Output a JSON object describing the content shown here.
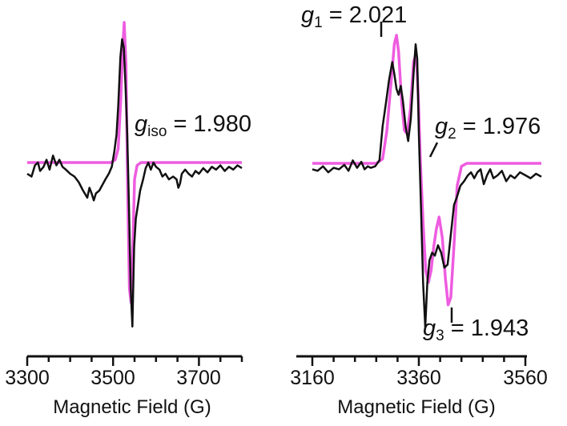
{
  "colors": {
    "experiment": "#111111",
    "simulation": "#ee5ce0"
  },
  "chart_data": [
    {
      "type": "line",
      "xlabel": "Magnetic Field (G)",
      "xlim": [
        3300,
        3800
      ],
      "xticks_major": [
        3300,
        3500,
        3700
      ],
      "xticks_minor": [
        3350,
        3400,
        3450,
        3550,
        3600,
        3650,
        3750,
        3800
      ],
      "tick_labels": [
        "3300",
        "3500",
        "3700"
      ],
      "annotation": {
        "g": "g",
        "sub": "iso",
        "value": "= 1.980"
      },
      "simulation": {
        "baseline": 0,
        "center": 3532,
        "points": [
          [
            3300,
            0
          ],
          [
            3495,
            0
          ],
          [
            3505,
            0.02
          ],
          [
            3512,
            0.1
          ],
          [
            3518,
            0.45
          ],
          [
            3522,
            0.8
          ],
          [
            3526,
            1.0
          ],
          [
            3530,
            0.7
          ],
          [
            3534,
            -0.2
          ],
          [
            3538,
            -0.9
          ],
          [
            3542,
            -1.0
          ],
          [
            3546,
            -0.6
          ],
          [
            3550,
            -0.12
          ],
          [
            3556,
            -0.02
          ],
          [
            3565,
            0
          ],
          [
            3800,
            0
          ]
        ]
      },
      "experiment": {
        "points": [
          [
            3300,
            -0.08
          ],
          [
            3310,
            -0.1
          ],
          [
            3318,
            -0.02
          ],
          [
            3325,
            0.0
          ],
          [
            3330,
            -0.06
          ],
          [
            3338,
            -0.03
          ],
          [
            3345,
            0.02
          ],
          [
            3352,
            -0.05
          ],
          [
            3360,
            0.05
          ],
          [
            3368,
            -0.02
          ],
          [
            3375,
            0.02
          ],
          [
            3382,
            -0.03
          ],
          [
            3390,
            -0.05
          ],
          [
            3400,
            -0.08
          ],
          [
            3410,
            -0.1
          ],
          [
            3420,
            -0.14
          ],
          [
            3430,
            -0.2
          ],
          [
            3440,
            -0.25
          ],
          [
            3445,
            -0.18
          ],
          [
            3450,
            -0.22
          ],
          [
            3455,
            -0.27
          ],
          [
            3460,
            -0.22
          ],
          [
            3468,
            -0.2
          ],
          [
            3475,
            -0.16
          ],
          [
            3482,
            -0.12
          ],
          [
            3490,
            -0.08
          ],
          [
            3497,
            -0.03
          ],
          [
            3503,
            0.08
          ],
          [
            3508,
            0.2
          ],
          [
            3512,
            0.4
          ],
          [
            3517,
            0.75
          ],
          [
            3521,
            0.88
          ],
          [
            3525,
            0.82
          ],
          [
            3529,
            0.55
          ],
          [
            3533,
            0.2
          ],
          [
            3537,
            -0.3
          ],
          [
            3541,
            -0.9
          ],
          [
            3545,
            -1.17
          ],
          [
            3549,
            -0.6
          ],
          [
            3553,
            -0.4
          ],
          [
            3558,
            -0.3
          ],
          [
            3563,
            -0.2
          ],
          [
            3570,
            -0.12
          ],
          [
            3576,
            -0.04
          ],
          [
            3582,
            0.0
          ],
          [
            3588,
            -0.05
          ],
          [
            3594,
            0.0
          ],
          [
            3600,
            -0.03
          ],
          [
            3608,
            -0.05
          ],
          [
            3615,
            -0.1
          ],
          [
            3622,
            -0.08
          ],
          [
            3630,
            -0.12
          ],
          [
            3640,
            -0.1
          ],
          [
            3648,
            -0.12
          ],
          [
            3652,
            -0.18
          ],
          [
            3656,
            -0.15
          ],
          [
            3660,
            -0.08
          ],
          [
            3668,
            -0.05
          ],
          [
            3676,
            -0.08
          ],
          [
            3684,
            -0.1
          ],
          [
            3692,
            -0.06
          ],
          [
            3700,
            -0.08
          ],
          [
            3710,
            -0.04
          ],
          [
            3720,
            -0.07
          ],
          [
            3730,
            -0.03
          ],
          [
            3740,
            -0.05
          ],
          [
            3750,
            -0.02
          ],
          [
            3760,
            -0.06
          ],
          [
            3770,
            -0.03
          ],
          [
            3780,
            -0.05
          ],
          [
            3790,
            -0.02
          ],
          [
            3800,
            -0.04
          ]
        ]
      }
    },
    {
      "type": "line",
      "xlabel": "Magnetic Field (G)",
      "xlim": [
        3160,
        3590
      ],
      "xticks_major": [
        3160,
        3360,
        3560
      ],
      "xticks_minor": [
        3200,
        3240,
        3280,
        3320,
        3400,
        3440,
        3480,
        3520
      ],
      "tick_labels": [
        "3160",
        "3360",
        "3560"
      ],
      "annotations": [
        {
          "g": "g",
          "sub": "1",
          "value": "= 2.021",
          "field": 3318
        },
        {
          "g": "g",
          "sub": "2",
          "value": "= 1.976",
          "field": 3380
        },
        {
          "g": "g",
          "sub": "3",
          "value": "= 1.943",
          "field": 3450
        }
      ],
      "simulation": {
        "baseline": 0,
        "points": [
          [
            3160,
            0
          ],
          [
            3280,
            0
          ],
          [
            3292,
            0.03
          ],
          [
            3300,
            0.22
          ],
          [
            3308,
            0.55
          ],
          [
            3314,
            0.8
          ],
          [
            3318,
            0.86
          ],
          [
            3322,
            0.75
          ],
          [
            3328,
            0.4
          ],
          [
            3333,
            0.22
          ],
          [
            3338,
            0.2
          ],
          [
            3344,
            0.36
          ],
          [
            3350,
            0.68
          ],
          [
            3355,
            0.74
          ],
          [
            3359,
            0.45
          ],
          [
            3363,
            0.0
          ],
          [
            3368,
            -0.4
          ],
          [
            3373,
            -0.72
          ],
          [
            3378,
            -0.8
          ],
          [
            3383,
            -0.72
          ],
          [
            3388,
            -0.56
          ],
          [
            3393,
            -0.44
          ],
          [
            3398,
            -0.36
          ],
          [
            3404,
            -0.5
          ],
          [
            3410,
            -0.78
          ],
          [
            3415,
            -0.95
          ],
          [
            3420,
            -0.9
          ],
          [
            3426,
            -0.55
          ],
          [
            3432,
            -0.15
          ],
          [
            3440,
            -0.02
          ],
          [
            3450,
            0
          ],
          [
            3590,
            0
          ]
        ]
      },
      "experiment": {
        "points": [
          [
            3160,
            -0.04
          ],
          [
            3170,
            -0.05
          ],
          [
            3180,
            -0.02
          ],
          [
            3190,
            -0.06
          ],
          [
            3200,
            -0.03
          ],
          [
            3210,
            -0.04
          ],
          [
            3220,
            -0.01
          ],
          [
            3228,
            -0.05
          ],
          [
            3236,
            0.02
          ],
          [
            3244,
            -0.03
          ],
          [
            3252,
            0.01
          ],
          [
            3258,
            -0.04
          ],
          [
            3264,
            -0.02
          ],
          [
            3270,
            -0.03
          ],
          [
            3278,
            -0.02
          ],
          [
            3286,
            0.02
          ],
          [
            3292,
            0.25
          ],
          [
            3298,
            0.4
          ],
          [
            3304,
            0.56
          ],
          [
            3310,
            0.68
          ],
          [
            3314,
            0.6
          ],
          [
            3318,
            0.5
          ],
          [
            3322,
            0.46
          ],
          [
            3326,
            0.52
          ],
          [
            3330,
            0.42
          ],
          [
            3335,
            0.25
          ],
          [
            3340,
            0.15
          ],
          [
            3345,
            0.3
          ],
          [
            3350,
            0.6
          ],
          [
            3354,
            0.8
          ],
          [
            3357,
            0.7
          ],
          [
            3360,
            0.2
          ],
          [
            3364,
            -0.3
          ],
          [
            3368,
            -0.8
          ],
          [
            3372,
            -1.1
          ],
          [
            3376,
            -0.8
          ],
          [
            3380,
            -0.65
          ],
          [
            3385,
            -0.6
          ],
          [
            3390,
            -0.62
          ],
          [
            3396,
            -0.55
          ],
          [
            3402,
            -0.6
          ],
          [
            3408,
            -0.7
          ],
          [
            3414,
            -0.68
          ],
          [
            3420,
            -0.48
          ],
          [
            3426,
            -0.28
          ],
          [
            3432,
            -0.22
          ],
          [
            3438,
            -0.15
          ],
          [
            3445,
            -0.12
          ],
          [
            3452,
            -0.08
          ],
          [
            3458,
            -0.06
          ],
          [
            3464,
            -0.1
          ],
          [
            3470,
            -0.06
          ],
          [
            3476,
            -0.04
          ],
          [
            3482,
            -0.14
          ],
          [
            3488,
            -0.08
          ],
          [
            3494,
            -0.04
          ],
          [
            3500,
            -0.1
          ],
          [
            3508,
            -0.08
          ],
          [
            3516,
            -0.05
          ],
          [
            3524,
            -0.12
          ],
          [
            3532,
            -0.08
          ],
          [
            3540,
            -0.1
          ],
          [
            3550,
            -0.06
          ],
          [
            3560,
            -0.08
          ],
          [
            3570,
            -0.1
          ],
          [
            3580,
            -0.07
          ],
          [
            3590,
            -0.09
          ]
        ]
      }
    }
  ]
}
